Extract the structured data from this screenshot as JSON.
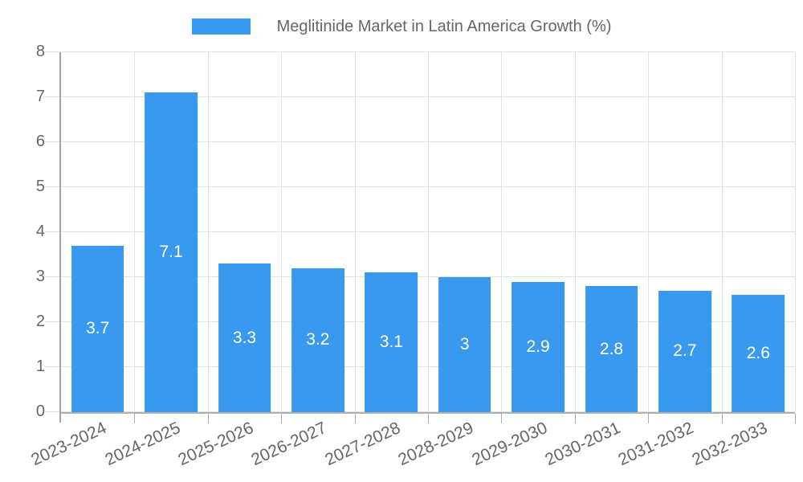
{
  "legend": {
    "position": "top",
    "items": [
      {
        "label": "Meglitinide Market in Latin America Growth (%)",
        "color": "#3999EE"
      }
    ]
  },
  "chart_data": {
    "type": "bar",
    "title": "",
    "xlabel": "",
    "ylabel": "",
    "categories": [
      "2023-2024",
      "2024-2025",
      "2025-2026",
      "2026-2027",
      "2027-2028",
      "2028-2029",
      "2029-2030",
      "2030-2031",
      "2031-2032",
      "2032-2033"
    ],
    "series": [
      {
        "name": "Meglitinide Market in Latin America Growth (%)",
        "values": [
          3.7,
          7.1,
          3.3,
          3.2,
          3.1,
          3,
          2.9,
          2.8,
          2.7,
          2.6
        ]
      }
    ],
    "data_labels": [
      "3.7",
      "7.1",
      "3.3",
      "3.2",
      "3.1",
      "3",
      "2.9",
      "2.8",
      "2.7",
      "2.6"
    ],
    "ylim": [
      0,
      8
    ],
    "yticks": [
      0,
      1,
      2,
      3,
      4,
      5,
      6,
      7,
      8
    ],
    "grid": true,
    "legend_position": "top",
    "x_label_rotation_deg": -25,
    "bar_percentage_of_category": 0.72,
    "colors": {
      "bar": "#3999EE",
      "grid": "#e3e3e3",
      "y_axis": "#a3a3a3",
      "x_axis": "#b0b0b0",
      "x_tick_mark": "#ababab",
      "tick_label": "#666666",
      "data_label": "#ffffff"
    }
  }
}
